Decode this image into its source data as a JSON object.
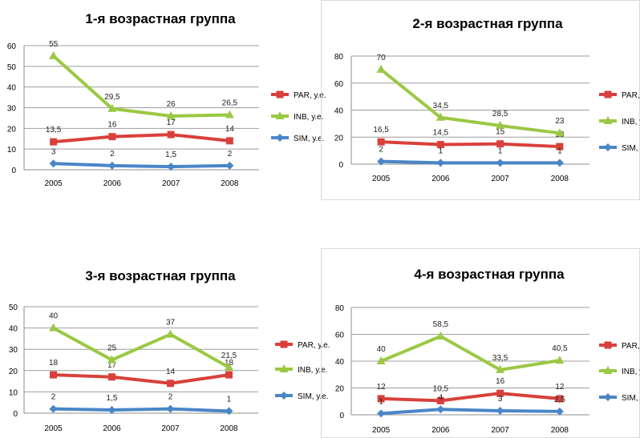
{
  "chart_data": [
    {
      "type": "line",
      "title": "1-я возрастная группа",
      "categories": [
        "2005",
        "2006",
        "2007",
        "2008"
      ],
      "ylim": [
        0,
        60
      ],
      "yticks": [
        "0",
        "10",
        "20",
        "30",
        "40",
        "50",
        "60"
      ],
      "grid": true,
      "legend": "right",
      "series": [
        {
          "name": "PAR, у.е.",
          "color": "#d9403b",
          "marker": "square",
          "values": [
            13.5,
            16,
            17,
            14
          ],
          "labels": [
            "13,5",
            "16",
            "17",
            "14"
          ]
        },
        {
          "name": "INB, у.е.",
          "color": "#9bc844",
          "marker": "triangle",
          "values": [
            55,
            29.5,
            26,
            26.5
          ],
          "labels": [
            "55",
            "29,5",
            "26",
            "26,5"
          ]
        },
        {
          "name": "SIM, у.е.",
          "color": "#4a86c8",
          "marker": "diamond",
          "values": [
            3,
            2,
            1.5,
            2
          ],
          "labels": [
            "3",
            "2",
            "1,5",
            "2"
          ]
        }
      ]
    },
    {
      "type": "line",
      "title": "2-я возрастная группа",
      "categories": [
        "2005",
        "2006",
        "2007",
        "2008"
      ],
      "ylim": [
        0,
        80
      ],
      "yticks": [
        "0",
        "20",
        "40",
        "60",
        "80"
      ],
      "grid": true,
      "legend": "right",
      "series": [
        {
          "name": "PAR, у.е.",
          "color": "#d9403b",
          "marker": "square",
          "values": [
            16.5,
            14.5,
            15,
            13
          ],
          "labels": [
            "16,5",
            "14,5",
            "15",
            "13"
          ]
        },
        {
          "name": "INB, у.е.",
          "color": "#9bc844",
          "marker": "triangle",
          "values": [
            70,
            34.5,
            28.5,
            23
          ],
          "labels": [
            "70",
            "34,5",
            "28,5",
            "23"
          ]
        },
        {
          "name": "SIM, у.е.",
          "color": "#4a86c8",
          "marker": "diamond",
          "values": [
            2,
            1,
            1,
            1
          ],
          "labels": [
            "2",
            "1",
            "1",
            "1"
          ]
        }
      ]
    },
    {
      "type": "line",
      "title": "3-я возрастная группа",
      "categories": [
        "2005",
        "2006",
        "2007",
        "2008"
      ],
      "ylim": [
        0,
        50
      ],
      "yticks": [
        "0",
        "10",
        "20",
        "30",
        "40",
        "50"
      ],
      "grid": true,
      "legend": "right",
      "series": [
        {
          "name": "PAR, у.е.",
          "color": "#d9403b",
          "marker": "square",
          "values": [
            18,
            17,
            14,
            18
          ],
          "labels": [
            "18",
            "17",
            "14",
            "18"
          ]
        },
        {
          "name": "INB, у.е.",
          "color": "#9bc844",
          "marker": "triangle",
          "values": [
            40,
            25,
            37,
            21.5
          ],
          "labels": [
            "40",
            "25",
            "37",
            "21,5"
          ]
        },
        {
          "name": "SIM, у.е.",
          "color": "#4a86c8",
          "marker": "diamond",
          "values": [
            2,
            1.5,
            2,
            1
          ],
          "labels": [
            "2",
            "1,5",
            "2",
            "1"
          ]
        }
      ]
    },
    {
      "type": "line",
      "title": "4-я возрастная группа",
      "categories": [
        "2005",
        "2006",
        "2007",
        "2008"
      ],
      "ylim": [
        0,
        80
      ],
      "yticks": [
        "0",
        "20",
        "40",
        "60",
        "80"
      ],
      "grid": true,
      "legend": "right",
      "series": [
        {
          "name": "PAR, у.е.",
          "color": "#d9403b",
          "marker": "square",
          "values": [
            12,
            10.5,
            16,
            12
          ],
          "labels": [
            "12",
            "10,5",
            "16",
            "12"
          ]
        },
        {
          "name": "INB, у.е.",
          "color": "#9bc844",
          "marker": "triangle",
          "values": [
            40,
            58.5,
            33.5,
            40.5
          ],
          "labels": [
            "40",
            "58,5",
            "33,5",
            "40,5"
          ]
        },
        {
          "name": "SIM, у.е.",
          "color": "#4a86c8",
          "marker": "diamond",
          "values": [
            1,
            4,
            3,
            2.5
          ],
          "labels": [
            "1",
            "4",
            "3",
            "2,5"
          ]
        }
      ]
    }
  ]
}
